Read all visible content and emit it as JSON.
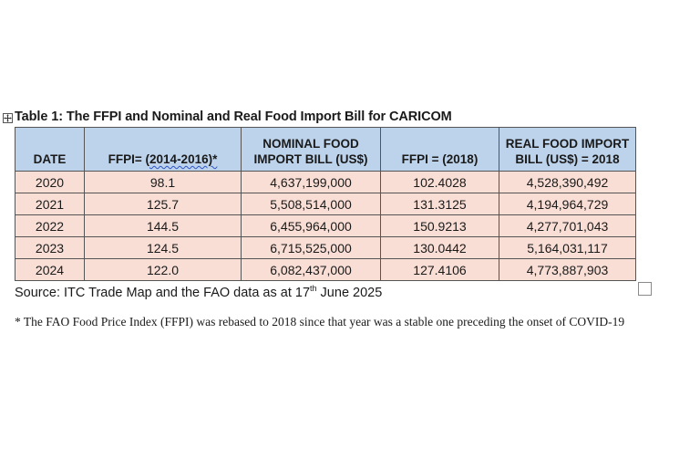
{
  "document": {
    "table_title": "Table 1: The FFPI and Nominal and Real Food Import Bill for CARICOM",
    "headers": {
      "date": "DATE",
      "ffpi_prefix": "FFPI= (",
      "ffpi_underlined": "2014-2016)*",
      "nominal_line1": "NOMINAL FOOD",
      "nominal_line2": "IMPORT BILL (US$)",
      "ffpi_2018": "FFPI = (2018)",
      "real_line1": "REAL FOOD IMPORT",
      "real_line2": "BILL (US$) = 2018"
    },
    "rows": [
      {
        "date": "2020",
        "ffpi": "98.1",
        "nominal": "4,637,199,000",
        "ffpi_2018": "102.4028",
        "real": "4,528,390,492"
      },
      {
        "date": "2021",
        "ffpi": "125.7",
        "nominal": "5,508,514,000",
        "ffpi_2018": "131.3125",
        "real": "4,194,964,729"
      },
      {
        "date": "2022",
        "ffpi": "144.5",
        "nominal": "6,455,964,000",
        "ffpi_2018": "150.9213",
        "real": "4,277,701,043"
      },
      {
        "date": "2023",
        "ffpi": "124.5",
        "nominal": "6,715,525,000",
        "ffpi_2018": "130.0442",
        "real": "5,164,031,117"
      },
      {
        "date": "2024",
        "ffpi": "122.0",
        "nominal": "6,082,437,000",
        "ffpi_2018": "127.4106",
        "real": "4,773,887,903"
      }
    ],
    "source": {
      "before": "Source: ITC Trade Map and the FAO data as at 17",
      "superscript": "th",
      "after": " June 2025"
    },
    "footnote": "* The FAO Food Price Index (FFPI) was rebased to 2018 since that year was a stable one preceding the onset of COVID-19"
  },
  "colors": {
    "header_fill": "#bdd3ec",
    "row_fill": "#f9ded5",
    "spellcheck_underline": "#2f55c8"
  },
  "icons": {
    "table_handle": "move-cross-icon",
    "end_marker": "checkbox-outline-icon"
  }
}
